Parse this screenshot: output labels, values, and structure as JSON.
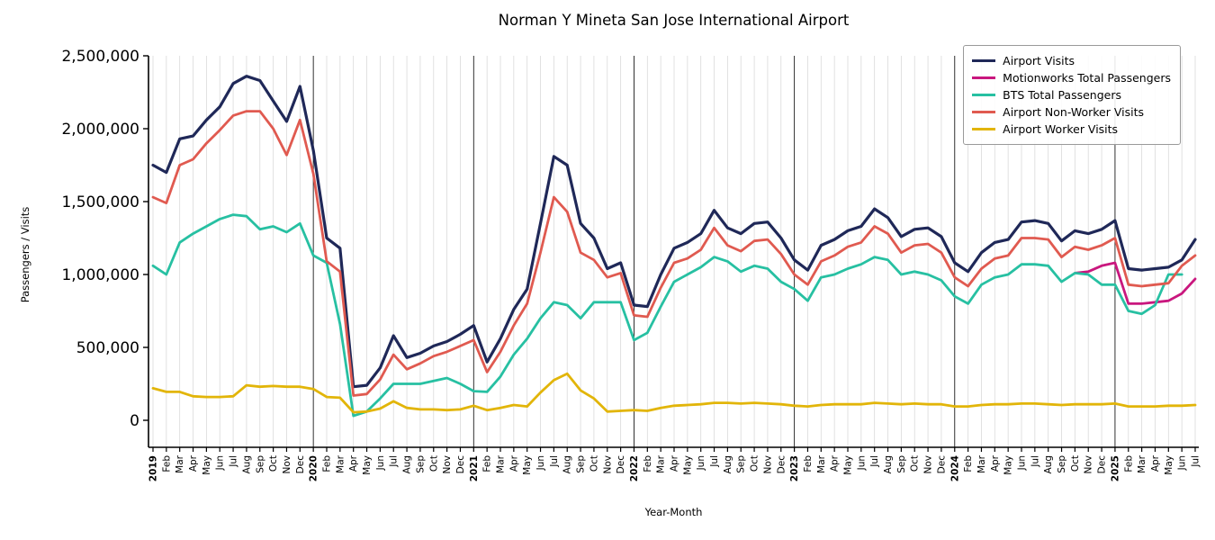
{
  "chart_data": {
    "type": "line",
    "title": "Norman Y Mineta San Jose International Airport",
    "xlabel": "Year-Month",
    "ylabel": "Passengers / Visits",
    "ylim": [
      0,
      2500000
    ],
    "yticks": [
      0,
      500000,
      1000000,
      1500000,
      2000000,
      2500000
    ],
    "grid": "vertical gridlines at every month, dark vertical lines at each January (year boundary)",
    "legend_position": "upper right",
    "categories": [
      "2019",
      "Feb",
      "Mar",
      "Apr",
      "May",
      "Jun",
      "Jul",
      "Aug",
      "Sep",
      "Oct",
      "Nov",
      "Dec",
      "2020",
      "Feb",
      "Mar",
      "Apr",
      "May",
      "Jun",
      "Jul",
      "Aug",
      "Sep",
      "Oct",
      "Nov",
      "Dec",
      "2021",
      "Feb",
      "Mar",
      "Apr",
      "May",
      "Jun",
      "Jul",
      "Aug",
      "Sep",
      "Oct",
      "Nov",
      "Dec",
      "2022",
      "Feb",
      "Mar",
      "Apr",
      "May",
      "Jun",
      "Jul",
      "Aug",
      "Sep",
      "Oct",
      "Nov",
      "Dec",
      "2023",
      "Feb",
      "Mar",
      "Apr",
      "May",
      "Jun",
      "Jul",
      "Aug",
      "Sep",
      "Oct",
      "Nov",
      "Dec",
      "2024",
      "Feb",
      "Mar",
      "Apr",
      "May",
      "Jun",
      "Jul",
      "Aug",
      "Sep",
      "Oct",
      "Nov",
      "Dec",
      "2025",
      "Feb",
      "Mar",
      "Apr",
      "May",
      "Jun",
      "Jul"
    ],
    "year_start_indices": [
      0,
      12,
      24,
      36,
      48,
      60,
      72
    ],
    "series": [
      {
        "name": "Airport Visits",
        "color": "#1f2858",
        "values": [
          1750000,
          1700000,
          1930000,
          1950000,
          2060000,
          2150000,
          2310000,
          2360000,
          2330000,
          2190000,
          2050000,
          2290000,
          1850000,
          1250000,
          1180000,
          230000,
          240000,
          360000,
          580000,
          430000,
          460000,
          510000,
          540000,
          590000,
          650000,
          400000,
          560000,
          760000,
          900000,
          1350000,
          1810000,
          1750000,
          1350000,
          1250000,
          1040000,
          1080000,
          790000,
          780000,
          1000000,
          1180000,
          1220000,
          1280000,
          1440000,
          1320000,
          1280000,
          1350000,
          1360000,
          1250000,
          1100000,
          1030000,
          1200000,
          1240000,
          1300000,
          1330000,
          1450000,
          1390000,
          1260000,
          1310000,
          1320000,
          1260000,
          1080000,
          1020000,
          1150000,
          1220000,
          1240000,
          1360000,
          1370000,
          1350000,
          1230000,
          1300000,
          1280000,
          1310000,
          1370000,
          1040000,
          1030000,
          1040000,
          1050000,
          1100000,
          1240000
        ]
      },
      {
        "name": "Motionworks Total Passengers",
        "color": "#c9177e",
        "values": [
          null,
          null,
          null,
          null,
          null,
          null,
          null,
          null,
          null,
          null,
          null,
          null,
          null,
          null,
          null,
          null,
          null,
          null,
          null,
          null,
          null,
          null,
          null,
          null,
          null,
          null,
          null,
          null,
          null,
          null,
          null,
          null,
          null,
          null,
          null,
          null,
          null,
          null,
          null,
          null,
          null,
          null,
          null,
          null,
          null,
          null,
          null,
          null,
          null,
          null,
          null,
          null,
          null,
          null,
          null,
          null,
          null,
          null,
          null,
          null,
          null,
          null,
          null,
          null,
          null,
          null,
          null,
          null,
          null,
          1010000,
          1020000,
          1060000,
          1080000,
          800000,
          800000,
          810000,
          820000,
          870000,
          970000
        ]
      },
      {
        "name": "BTS Total Passengers",
        "color": "#27c0a2",
        "values": [
          1060000,
          1000000,
          1220000,
          1280000,
          1330000,
          1380000,
          1410000,
          1400000,
          1310000,
          1330000,
          1290000,
          1350000,
          1130000,
          1080000,
          660000,
          30000,
          60000,
          150000,
          250000,
          250000,
          250000,
          270000,
          290000,
          250000,
          200000,
          195000,
          300000,
          450000,
          560000,
          700000,
          810000,
          790000,
          700000,
          810000,
          810000,
          810000,
          550000,
          600000,
          780000,
          950000,
          1000000,
          1050000,
          1120000,
          1090000,
          1020000,
          1060000,
          1040000,
          950000,
          900000,
          820000,
          980000,
          1000000,
          1040000,
          1070000,
          1120000,
          1100000,
          1000000,
          1020000,
          1000000,
          960000,
          850000,
          800000,
          930000,
          980000,
          1000000,
          1070000,
          1070000,
          1060000,
          950000,
          1010000,
          1000000,
          930000,
          930000,
          750000,
          730000,
          790000,
          1000000,
          1000000,
          null
        ]
      },
      {
        "name": "Airport Non-Worker Visits",
        "color": "#e05a50",
        "values": [
          1530000,
          1490000,
          1750000,
          1790000,
          1900000,
          1990000,
          2090000,
          2120000,
          2120000,
          2000000,
          1820000,
          2060000,
          1690000,
          1090000,
          1020000,
          170000,
          180000,
          280000,
          450000,
          350000,
          390000,
          440000,
          470000,
          510000,
          550000,
          330000,
          470000,
          650000,
          800000,
          1150000,
          1530000,
          1430000,
          1150000,
          1100000,
          980000,
          1010000,
          720000,
          710000,
          910000,
          1080000,
          1110000,
          1170000,
          1320000,
          1200000,
          1160000,
          1230000,
          1240000,
          1140000,
          1000000,
          930000,
          1090000,
          1130000,
          1190000,
          1220000,
          1330000,
          1280000,
          1150000,
          1200000,
          1210000,
          1150000,
          980000,
          920000,
          1040000,
          1110000,
          1130000,
          1250000,
          1250000,
          1240000,
          1120000,
          1190000,
          1170000,
          1200000,
          1250000,
          930000,
          920000,
          930000,
          940000,
          1060000,
          1130000
        ]
      },
      {
        "name": "Airport Worker Visits",
        "color": "#e2b509",
        "values": [
          220000,
          195000,
          195000,
          165000,
          160000,
          160000,
          165000,
          240000,
          230000,
          235000,
          230000,
          230000,
          215000,
          160000,
          155000,
          55000,
          60000,
          80000,
          130000,
          85000,
          75000,
          75000,
          70000,
          75000,
          100000,
          70000,
          85000,
          105000,
          95000,
          190000,
          275000,
          320000,
          205000,
          150000,
          60000,
          65000,
          70000,
          65000,
          85000,
          100000,
          105000,
          110000,
          120000,
          120000,
          115000,
          120000,
          115000,
          110000,
          100000,
          95000,
          105000,
          110000,
          110000,
          110000,
          120000,
          115000,
          110000,
          115000,
          110000,
          110000,
          95000,
          95000,
          105000,
          110000,
          110000,
          115000,
          115000,
          110000,
          105000,
          110000,
          110000,
          110000,
          115000,
          95000,
          95000,
          95000,
          100000,
          100000,
          105000
        ]
      }
    ]
  }
}
